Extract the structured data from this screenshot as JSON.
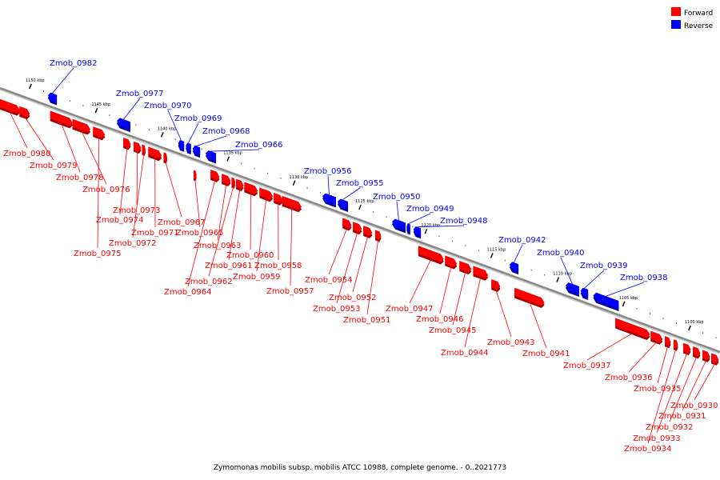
{
  "caption": "Zymomonas mobilis subsp. mobilis ATCC 10988, complete genome. - 0..2021773",
  "legend": [
    {
      "label": "Forward",
      "color": "#ff0000"
    },
    {
      "label": "Reverse",
      "color": "#0000ff"
    }
  ],
  "colors": {
    "forward": "#ff0000",
    "reverse": "#0000ff",
    "axis": "#888888"
  },
  "scale": [
    {
      "label": "1150 kbp",
      "kbp": 1150
    },
    {
      "label": "1145 kbp",
      "kbp": 1145
    },
    {
      "label": "1140 kbp",
      "kbp": 1140
    },
    {
      "label": "1135 kbp",
      "kbp": 1135
    },
    {
      "label": "1130 kbp",
      "kbp": 1130
    },
    {
      "label": "1125 kbp",
      "kbp": 1125
    },
    {
      "label": "1120 kbp",
      "kbp": 1120
    },
    {
      "label": "1115 kbp",
      "kbp": 1115
    },
    {
      "label": "1110 kbp",
      "kbp": 1110
    },
    {
      "label": "1105 kbp",
      "kbp": 1105
    },
    {
      "label": "1100 kbp",
      "kbp": 1100
    }
  ],
  "genes": [
    {
      "id": "Zmob_0982",
      "strand": "reverse"
    },
    {
      "id": "Zmob_0977",
      "strand": "reverse"
    },
    {
      "id": "Zmob_0970",
      "strand": "reverse"
    },
    {
      "id": "Zmob_0969",
      "strand": "reverse"
    },
    {
      "id": "Zmob_0968",
      "strand": "reverse"
    },
    {
      "id": "Zmob_0966",
      "strand": "reverse"
    },
    {
      "id": "Zmob_0956",
      "strand": "reverse"
    },
    {
      "id": "Zmob_0955",
      "strand": "reverse"
    },
    {
      "id": "Zmob_0950",
      "strand": "reverse"
    },
    {
      "id": "Zmob_0949",
      "strand": "reverse"
    },
    {
      "id": "Zmob_0948",
      "strand": "reverse"
    },
    {
      "id": "Zmob_0942",
      "strand": "reverse"
    },
    {
      "id": "Zmob_0940",
      "strand": "reverse"
    },
    {
      "id": "Zmob_0939",
      "strand": "reverse"
    },
    {
      "id": "Zmob_0938",
      "strand": "reverse"
    },
    {
      "id": "Zmob_0980",
      "strand": "forward"
    },
    {
      "id": "Zmob_0979",
      "strand": "forward"
    },
    {
      "id": "Zmob_0978",
      "strand": "forward"
    },
    {
      "id": "Zmob_0976",
      "strand": "forward"
    },
    {
      "id": "Zmob_0973",
      "strand": "forward"
    },
    {
      "id": "Zmob_0974",
      "strand": "forward"
    },
    {
      "id": "Zmob_0971",
      "strand": "forward"
    },
    {
      "id": "Zmob_0972",
      "strand": "forward"
    },
    {
      "id": "Zmob_0975",
      "strand": "forward"
    },
    {
      "id": "Zmob_0967",
      "strand": "forward"
    },
    {
      "id": "Zmob_0965",
      "strand": "forward"
    },
    {
      "id": "Zmob_0963",
      "strand": "forward"
    },
    {
      "id": "Zmob_0961",
      "strand": "forward"
    },
    {
      "id": "Zmob_0960",
      "strand": "forward"
    },
    {
      "id": "Zmob_0958",
      "strand": "forward"
    },
    {
      "id": "Zmob_0962",
      "strand": "forward"
    },
    {
      "id": "Zmob_0959",
      "strand": "forward"
    },
    {
      "id": "Zmob_0964",
      "strand": "forward"
    },
    {
      "id": "Zmob_0957",
      "strand": "forward"
    },
    {
      "id": "Zmob_0954",
      "strand": "forward"
    },
    {
      "id": "Zmob_0952",
      "strand": "forward"
    },
    {
      "id": "Zmob_0953",
      "strand": "forward"
    },
    {
      "id": "Zmob_0951",
      "strand": "forward"
    },
    {
      "id": "Zmob_0947",
      "strand": "forward"
    },
    {
      "id": "Zmob_0946",
      "strand": "forward"
    },
    {
      "id": "Zmob_0945",
      "strand": "forward"
    },
    {
      "id": "Zmob_0944",
      "strand": "forward"
    },
    {
      "id": "Zmob_0943",
      "strand": "forward"
    },
    {
      "id": "Zmob_0941",
      "strand": "forward"
    },
    {
      "id": "Zmob_0937",
      "strand": "forward"
    },
    {
      "id": "Zmob_0936",
      "strand": "forward"
    },
    {
      "id": "Zmob_0935",
      "strand": "forward"
    },
    {
      "id": "Zmob_0930",
      "strand": "forward"
    },
    {
      "id": "Zmob_0931",
      "strand": "forward"
    },
    {
      "id": "Zmob_0932",
      "strand": "forward"
    },
    {
      "id": "Zmob_0933",
      "strand": "forward"
    },
    {
      "id": "Zmob_0934",
      "strand": "forward"
    }
  ]
}
